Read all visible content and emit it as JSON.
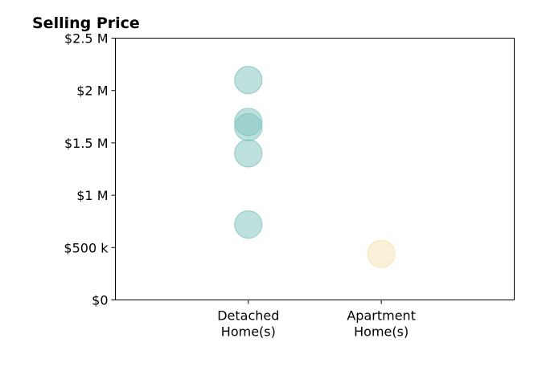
{
  "chart_data": {
    "type": "scatter",
    "title": "Selling Price",
    "xlabel": "",
    "ylabel": "",
    "categories": [
      "Detached\nHome(s)",
      "Apartment\nHome(s)"
    ],
    "xlim": [
      0,
      3
    ],
    "ylim": [
      0,
      2500000
    ],
    "yticks": [
      0,
      500000,
      1000000,
      1500000,
      2000000,
      2500000
    ],
    "ytick_labels": [
      "$0",
      "$500 k",
      "$1 M",
      "$1.5 M",
      "$2 M",
      "$2.5 M"
    ],
    "grid": false,
    "legend": "none",
    "series": [
      {
        "category": "Detached\nHome(s)",
        "color": "#7fc4bd",
        "values": [
          2100000,
          1700000,
          1650000,
          1400000,
          720000
        ]
      },
      {
        "category": "Apartment\nHome(s)",
        "color": "#f5e2b0",
        "values": [
          440000
        ]
      }
    ]
  }
}
